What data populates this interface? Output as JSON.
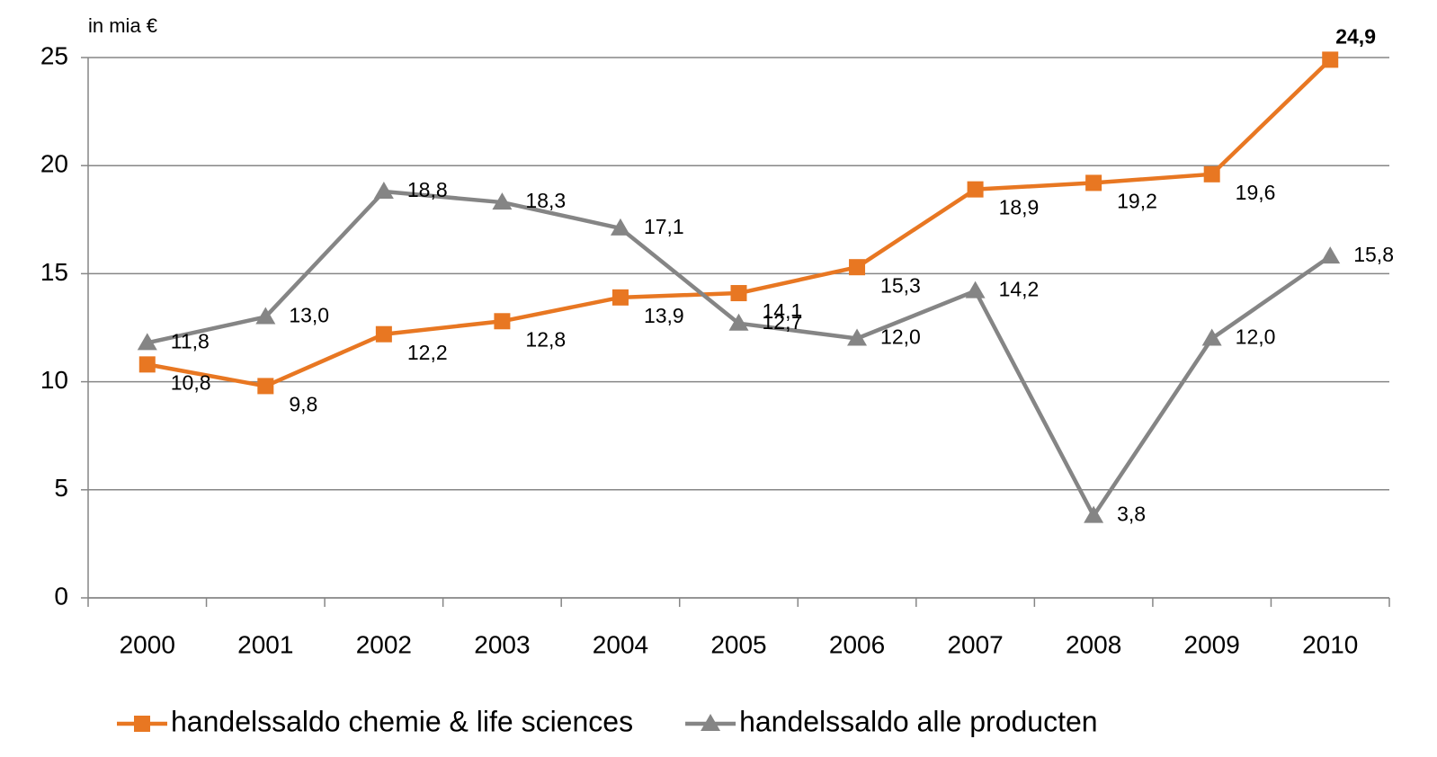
{
  "chart_data": {
    "type": "line",
    "y_axis_label": "in mia €",
    "categories": [
      "2000",
      "2001",
      "2002",
      "2003",
      "2004",
      "2005",
      "2006",
      "2007",
      "2008",
      "2009",
      "2010"
    ],
    "series": [
      {
        "name": "handelssaldo chemie & life sciences",
        "color": "#e87722",
        "marker": "square",
        "values": [
          10.8,
          9.8,
          12.2,
          12.8,
          13.9,
          14.1,
          15.3,
          18.9,
          19.2,
          19.6,
          24.9
        ],
        "value_labels": [
          "10,8",
          "9,8",
          "12,2",
          "12,8",
          "13,9",
          "14,1",
          "15,3",
          "18,9",
          "19,2",
          "19,6",
          "24,9"
        ]
      },
      {
        "name": "handelssaldo alle producten",
        "color": "#858585",
        "marker": "triangle",
        "values": [
          11.8,
          13.0,
          18.8,
          18.3,
          17.1,
          12.7,
          12.0,
          14.2,
          3.8,
          12.0,
          15.8
        ],
        "value_labels": [
          "11,8",
          "13,0",
          "18,8",
          "18,3",
          "17,1",
          "12,7",
          "12,0",
          "14,2",
          "3,8",
          "12,0",
          "15,8"
        ]
      }
    ],
    "ylim": [
      0,
      25
    ],
    "yticks": [
      0,
      5,
      10,
      15,
      20,
      25
    ],
    "grid": true,
    "legend": "bottom"
  }
}
